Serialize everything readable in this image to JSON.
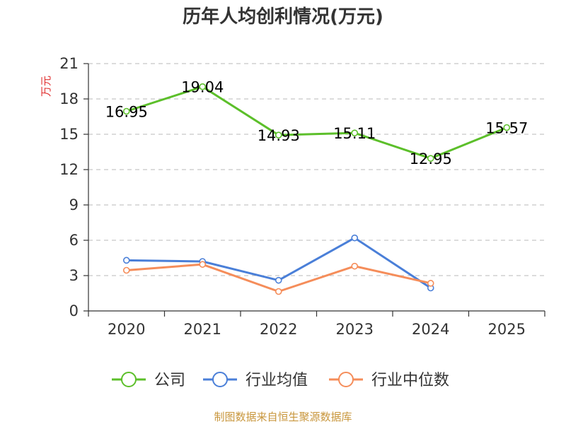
{
  "chart_data": {
    "type": "line",
    "title": "历年人均创利情况(万元)",
    "ylabel": "万元",
    "xlabel": "",
    "categories": [
      "2020",
      "2021",
      "2022",
      "2023",
      "2024",
      "2025"
    ],
    "ylim": [
      0,
      21
    ],
    "yticks": [
      0,
      3,
      6,
      9,
      12,
      15,
      18,
      21
    ],
    "grid": true,
    "legend_position": "bottom",
    "series": [
      {
        "name": "公司",
        "color": "#5cbf2a",
        "values": [
          16.95,
          19.04,
          14.93,
          15.11,
          12.95,
          15.57
        ],
        "labels": [
          "16.95",
          "19.04",
          "14.93",
          "15.11",
          "12.95",
          "15.57"
        ]
      },
      {
        "name": "行业均值",
        "color": "#4a7fd8",
        "values": [
          4.3,
          4.2,
          2.6,
          6.2,
          1.95,
          null
        ],
        "labels": null
      },
      {
        "name": "行业中位数",
        "color": "#f58d5a",
        "values": [
          3.45,
          3.95,
          1.65,
          3.8,
          2.35,
          null
        ],
        "labels": null
      }
    ],
    "source": "制图数据来自恒生聚源数据库",
    "ylabel_color": "#e03030",
    "source_color": "#c8963c"
  }
}
